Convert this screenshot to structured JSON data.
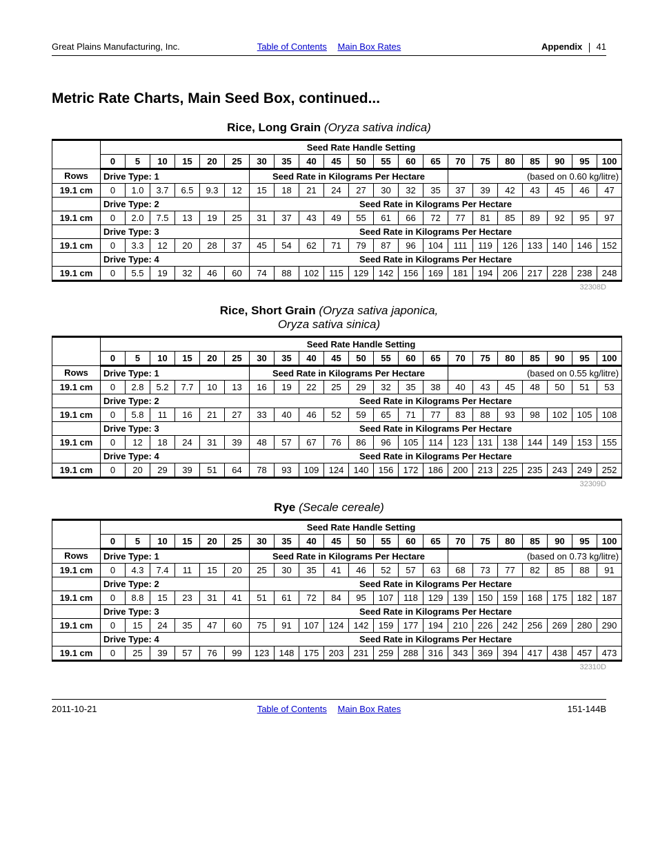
{
  "header": {
    "company": "Great Plains Manufacturing, Inc.",
    "link_toc": "Table of Contents",
    "link_rates": "Main Box Rates",
    "appendix_label": "Appendix",
    "page_num": "41"
  },
  "section_title": "Metric Rate Charts, Main Seed Box, continued...",
  "settings_header": "Seed Rate Handle Setting",
  "settings": [
    "0",
    "5",
    "10",
    "15",
    "20",
    "25",
    "30",
    "35",
    "40",
    "45",
    "50",
    "55",
    "60",
    "65",
    "70",
    "75",
    "80",
    "85",
    "90",
    "95",
    "100"
  ],
  "rows_label": "Rows",
  "row_spacing": "19.1 cm",
  "seedrate_label": "Seed Rate in Kilograms Per Hectare",
  "drive_labels": [
    "Drive Type: 1",
    "Drive Type: 2",
    "Drive Type: 3",
    "Drive Type: 4"
  ],
  "tables": [
    {
      "title_bold": "Rice, Long Grain",
      "title_ital": "(Oryza sativa indica)",
      "title_ital2": "",
      "based_on": "(based on 0.60 kg/litre)",
      "ref": "32308D",
      "drives": [
        [
          "0",
          "1.0",
          "3.7",
          "6.5",
          "9.3",
          "12",
          "15",
          "18",
          "21",
          "24",
          "27",
          "30",
          "32",
          "35",
          "37",
          "39",
          "42",
          "43",
          "45",
          "46",
          "47"
        ],
        [
          "0",
          "2.0",
          "7.5",
          "13",
          "19",
          "25",
          "31",
          "37",
          "43",
          "49",
          "55",
          "61",
          "66",
          "72",
          "77",
          "81",
          "85",
          "89",
          "92",
          "95",
          "97"
        ],
        [
          "0",
          "3.3",
          "12",
          "20",
          "28",
          "37",
          "45",
          "54",
          "62",
          "71",
          "79",
          "87",
          "96",
          "104",
          "111",
          "119",
          "126",
          "133",
          "140",
          "146",
          "152"
        ],
        [
          "0",
          "5.5",
          "19",
          "32",
          "46",
          "60",
          "74",
          "88",
          "102",
          "115",
          "129",
          "142",
          "156",
          "169",
          "181",
          "194",
          "206",
          "217",
          "228",
          "238",
          "248"
        ]
      ]
    },
    {
      "title_bold": "Rice, Short Grain",
      "title_ital": "(Oryza sativa japonica,",
      "title_ital2": "Oryza sativa sinica)",
      "based_on": "(based on 0.55 kg/litre)",
      "ref": "32309D",
      "drives": [
        [
          "0",
          "2.8",
          "5.2",
          "7.7",
          "10",
          "13",
          "16",
          "19",
          "22",
          "25",
          "29",
          "32",
          "35",
          "38",
          "40",
          "43",
          "45",
          "48",
          "50",
          "51",
          "53"
        ],
        [
          "0",
          "5.8",
          "11",
          "16",
          "21",
          "27",
          "33",
          "40",
          "46",
          "52",
          "59",
          "65",
          "71",
          "77",
          "83",
          "88",
          "93",
          "98",
          "102",
          "105",
          "108"
        ],
        [
          "0",
          "12",
          "18",
          "24",
          "31",
          "39",
          "48",
          "57",
          "67",
          "76",
          "86",
          "96",
          "105",
          "114",
          "123",
          "131",
          "138",
          "144",
          "149",
          "153",
          "155"
        ],
        [
          "0",
          "20",
          "29",
          "39",
          "51",
          "64",
          "78",
          "93",
          "109",
          "124",
          "140",
          "156",
          "172",
          "186",
          "200",
          "213",
          "225",
          "235",
          "243",
          "249",
          "252"
        ]
      ]
    },
    {
      "title_bold": "Rye",
      "title_ital": "(Secale cereale)",
      "title_ital2": "",
      "based_on": "(based on 0.73 kg/litre)",
      "ref": "32310D",
      "drives": [
        [
          "0",
          "4.3",
          "7.4",
          "11",
          "15",
          "20",
          "25",
          "30",
          "35",
          "41",
          "46",
          "52",
          "57",
          "63",
          "68",
          "73",
          "77",
          "82",
          "85",
          "88",
          "91"
        ],
        [
          "0",
          "8.8",
          "15",
          "23",
          "31",
          "41",
          "51",
          "61",
          "72",
          "84",
          "95",
          "107",
          "118",
          "129",
          "139",
          "150",
          "159",
          "168",
          "175",
          "182",
          "187"
        ],
        [
          "0",
          "15",
          "24",
          "35",
          "47",
          "60",
          "75",
          "91",
          "107",
          "124",
          "142",
          "159",
          "177",
          "194",
          "210",
          "226",
          "242",
          "256",
          "269",
          "280",
          "290"
        ],
        [
          "0",
          "25",
          "39",
          "57",
          "76",
          "99",
          "123",
          "148",
          "175",
          "203",
          "231",
          "259",
          "288",
          "316",
          "343",
          "369",
          "394",
          "417",
          "438",
          "457",
          "473"
        ]
      ]
    }
  ],
  "footer": {
    "date": "2011-10-21",
    "doc": "151-144B"
  }
}
